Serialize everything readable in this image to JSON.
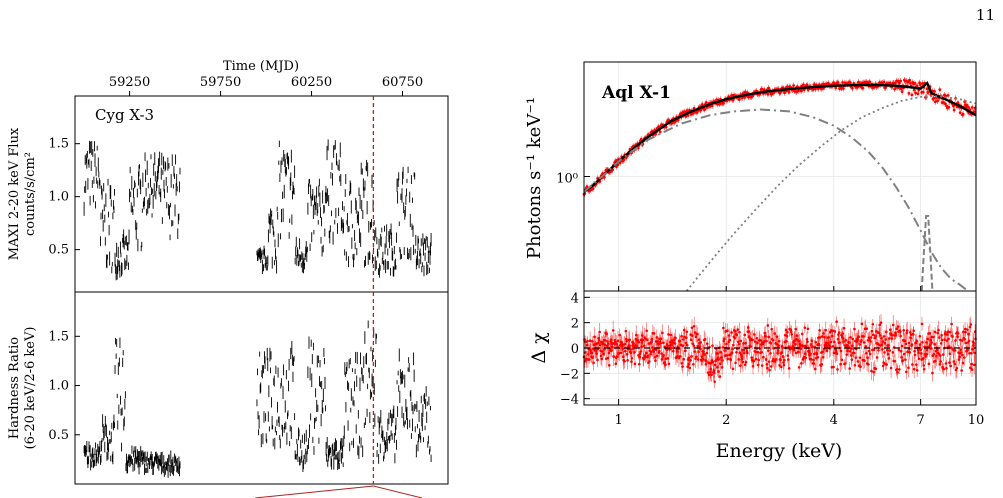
{
  "page": {
    "number": "11"
  },
  "chart_data": [
    {
      "type": "scatter",
      "panel": "left-top",
      "xlabel": "Time (MJD)",
      "xlim": [
        58950,
        61000
      ],
      "x_ticks": [
        59250,
        59750,
        60250,
        60750
      ],
      "ylabel_line1": "MAXI 2-20 keV Flux",
      "ylabel_line2": "counts/s/cm²",
      "ylim": [
        0.1,
        1.95
      ],
      "y_ticks": [
        0.5,
        1.0,
        1.5
      ],
      "y_tick_labels": [
        "0.5",
        "1.0",
        "1.5"
      ],
      "annotation": "Cyg X-3",
      "marker_line_x": 60590,
      "marker_line_color": "#b22222",
      "series_color": "#000000",
      "segments": [
        {
          "x": [
            59000,
            59090
          ],
          "center": 1.2,
          "spread": 0.45
        },
        {
          "x": [
            59090,
            59170
          ],
          "center": 0.72,
          "spread": 0.6
        },
        {
          "x": [
            59170,
            59250
          ],
          "center": 0.45,
          "spread": 0.25
        },
        {
          "x": [
            59250,
            59320
          ],
          "center": 0.9,
          "spread": 0.6
        },
        {
          "x": [
            59320,
            59430
          ],
          "center": 1.1,
          "spread": 0.4
        },
        {
          "x": [
            59430,
            59530
          ],
          "center": 1.0,
          "spread": 0.55
        },
        {
          "x": [
            59950,
            60010
          ],
          "center": 0.4,
          "spread": 0.12
        },
        {
          "x": [
            60010,
            60070
          ],
          "center": 0.65,
          "spread": 0.45
        },
        {
          "x": [
            60070,
            60160
          ],
          "center": 1.05,
          "spread": 0.65
        },
        {
          "x": [
            60160,
            60230
          ],
          "center": 0.45,
          "spread": 0.2
        },
        {
          "x": [
            60230,
            60320
          ],
          "center": 0.8,
          "spread": 0.5
        },
        {
          "x": [
            60320,
            60420
          ],
          "center": 1.05,
          "spread": 0.65
        },
        {
          "x": [
            60420,
            60520
          ],
          "center": 0.75,
          "spread": 0.6
        },
        {
          "x": [
            60520,
            60600
          ],
          "center": 0.85,
          "spread": 0.7
        },
        {
          "x": [
            60600,
            60720
          ],
          "center": 0.5,
          "spread": 0.3
        },
        {
          "x": [
            60720,
            60820
          ],
          "center": 0.85,
          "spread": 0.6
        },
        {
          "x": [
            60820,
            60910
          ],
          "center": 0.45,
          "spread": 0.25
        }
      ]
    },
    {
      "type": "scatter",
      "panel": "left-bottom",
      "xlim": [
        58950,
        61000
      ],
      "ylabel_line1": "Hardness Ratio",
      "ylabel_line2": "(6-20 keV/2-6 keV)",
      "ylim": [
        0.0,
        1.95
      ],
      "y_ticks": [
        0.5,
        1.0,
        1.5
      ],
      "y_tick_labels": [
        "0.5",
        "1.0",
        "1.5"
      ],
      "marker_line_x": 60590,
      "marker_line_color": "#b22222",
      "series_color": "#000000",
      "segments": [
        {
          "x": [
            59000,
            59090
          ],
          "center": 0.3,
          "spread": 0.15
        },
        {
          "x": [
            59090,
            59170
          ],
          "center": 0.45,
          "spread": 0.3
        },
        {
          "x": [
            59170,
            59230
          ],
          "center": 0.9,
          "spread": 0.8
        },
        {
          "x": [
            59230,
            59320
          ],
          "center": 0.25,
          "spread": 0.15
        },
        {
          "x": [
            59320,
            59420
          ],
          "center": 0.22,
          "spread": 0.12
        },
        {
          "x": [
            59420,
            59530
          ],
          "center": 0.2,
          "spread": 0.1
        },
        {
          "x": [
            59950,
            60060
          ],
          "center": 0.85,
          "spread": 0.7
        },
        {
          "x": [
            60060,
            60160
          ],
          "center": 0.9,
          "spread": 0.75
        },
        {
          "x": [
            60160,
            60230
          ],
          "center": 0.35,
          "spread": 0.25
        },
        {
          "x": [
            60230,
            60330
          ],
          "center": 0.9,
          "spread": 0.8
        },
        {
          "x": [
            60330,
            60430
          ],
          "center": 0.3,
          "spread": 0.2
        },
        {
          "x": [
            60430,
            60540
          ],
          "center": 0.8,
          "spread": 0.7
        },
        {
          "x": [
            60540,
            60610
          ],
          "center": 1.1,
          "spread": 0.8
        },
        {
          "x": [
            60610,
            60720
          ],
          "center": 0.5,
          "spread": 0.35
        },
        {
          "x": [
            60720,
            60820
          ],
          "center": 0.9,
          "spread": 0.6
        },
        {
          "x": [
            60820,
            60910
          ],
          "center": 0.6,
          "spread": 0.5
        }
      ]
    },
    {
      "type": "line",
      "panel": "right-top",
      "title": "Aql X-1",
      "ylabel": "Photons s⁻¹ keV⁻¹",
      "xscale": "log",
      "yscale": "log",
      "xlim": [
        0.8,
        10
      ],
      "ylim": [
        0.25,
        4.0
      ],
      "y_ticks": [
        1.0
      ],
      "y_tick_labels": [
        "10⁰"
      ],
      "grid": true,
      "data_color": "#ff0000",
      "data_points": {
        "x": [
          0.8,
          0.85,
          0.9,
          1.0,
          1.1,
          1.2,
          1.4,
          1.6,
          1.8,
          2.0,
          2.3,
          2.6,
          3.0,
          3.5,
          4.0,
          4.5,
          5.0,
          5.5,
          6.0,
          6.5,
          7.0,
          7.3,
          7.6,
          8.0,
          8.5,
          9.0,
          9.5,
          10.0
        ],
        "y": [
          0.83,
          0.9,
          1.0,
          1.2,
          1.4,
          1.6,
          1.95,
          2.2,
          2.4,
          2.55,
          2.7,
          2.8,
          2.88,
          2.95,
          3.0,
          3.02,
          3.03,
          3.02,
          3.0,
          2.95,
          2.9,
          2.85,
          2.75,
          2.6,
          2.45,
          2.35,
          2.25,
          2.1
        ]
      },
      "series": [
        {
          "style": "total",
          "x": [
            0.8,
            0.85,
            0.9,
            1.0,
            1.1,
            1.2,
            1.4,
            1.6,
            1.8,
            2.0,
            2.3,
            2.6,
            3.0,
            3.5,
            4.0,
            4.5,
            5.0,
            5.5,
            6.0,
            6.5,
            7.0,
            7.3,
            7.5,
            7.8,
            8.2,
            9.0,
            10.0
          ],
          "y": [
            0.83,
            0.9,
            1.0,
            1.2,
            1.4,
            1.6,
            1.95,
            2.2,
            2.4,
            2.55,
            2.7,
            2.8,
            2.88,
            2.95,
            3.0,
            3.02,
            3.03,
            3.02,
            3.0,
            2.95,
            2.9,
            3.1,
            2.75,
            2.65,
            2.55,
            2.35,
            2.1
          ]
        },
        {
          "style": "dashdot",
          "x": [
            0.8,
            0.9,
            1.0,
            1.2,
            1.5,
            1.8,
            2.1,
            2.5,
            3.0,
            3.5,
            4.0,
            4.5,
            5.0,
            5.5,
            6.0,
            6.5,
            7.0,
            7.5,
            8.0,
            8.5,
            9.0,
            9.5
          ],
          "y": [
            0.83,
            1.0,
            1.2,
            1.55,
            1.9,
            2.1,
            2.2,
            2.25,
            2.2,
            2.05,
            1.85,
            1.6,
            1.35,
            1.1,
            0.87,
            0.68,
            0.52,
            0.4,
            0.33,
            0.29,
            0.27,
            0.25
          ]
        },
        {
          "style": "dotted",
          "x": [
            1.55,
            1.7,
            1.9,
            2.1,
            2.4,
            2.8,
            3.2,
            3.7,
            4.2,
            4.8,
            5.5,
            6.2,
            7.0,
            7.5,
            8.0,
            9.0,
            10.0
          ],
          "y": [
            0.25,
            0.31,
            0.4,
            0.5,
            0.66,
            0.9,
            1.15,
            1.45,
            1.75,
            2.05,
            2.3,
            2.5,
            2.62,
            2.65,
            2.63,
            2.55,
            2.42
          ]
        },
        {
          "style": "dashed",
          "x": [
            7.05,
            7.15,
            7.25,
            7.35,
            7.45,
            7.55
          ],
          "y": [
            0.25,
            0.4,
            0.62,
            0.62,
            0.4,
            0.25
          ]
        }
      ]
    },
    {
      "type": "scatter",
      "panel": "right-bottom",
      "xlabel": "Energy (keV)",
      "ylabel": "Δ χ",
      "xscale": "log",
      "xlim": [
        0.8,
        10
      ],
      "x_ticks": [
        1,
        2,
        4,
        7,
        10
      ],
      "x_tick_labels": [
        "1",
        "2",
        "4",
        "7",
        "10"
      ],
      "ylim": [
        -4.5,
        4.5
      ],
      "y_ticks": [
        -4,
        -2,
        0,
        2,
        4
      ],
      "y_tick_labels": [
        "−4",
        "−2",
        "0",
        "2",
        "4"
      ],
      "reference_line": 0,
      "grid": true,
      "data_color": "#ff0000"
    }
  ]
}
